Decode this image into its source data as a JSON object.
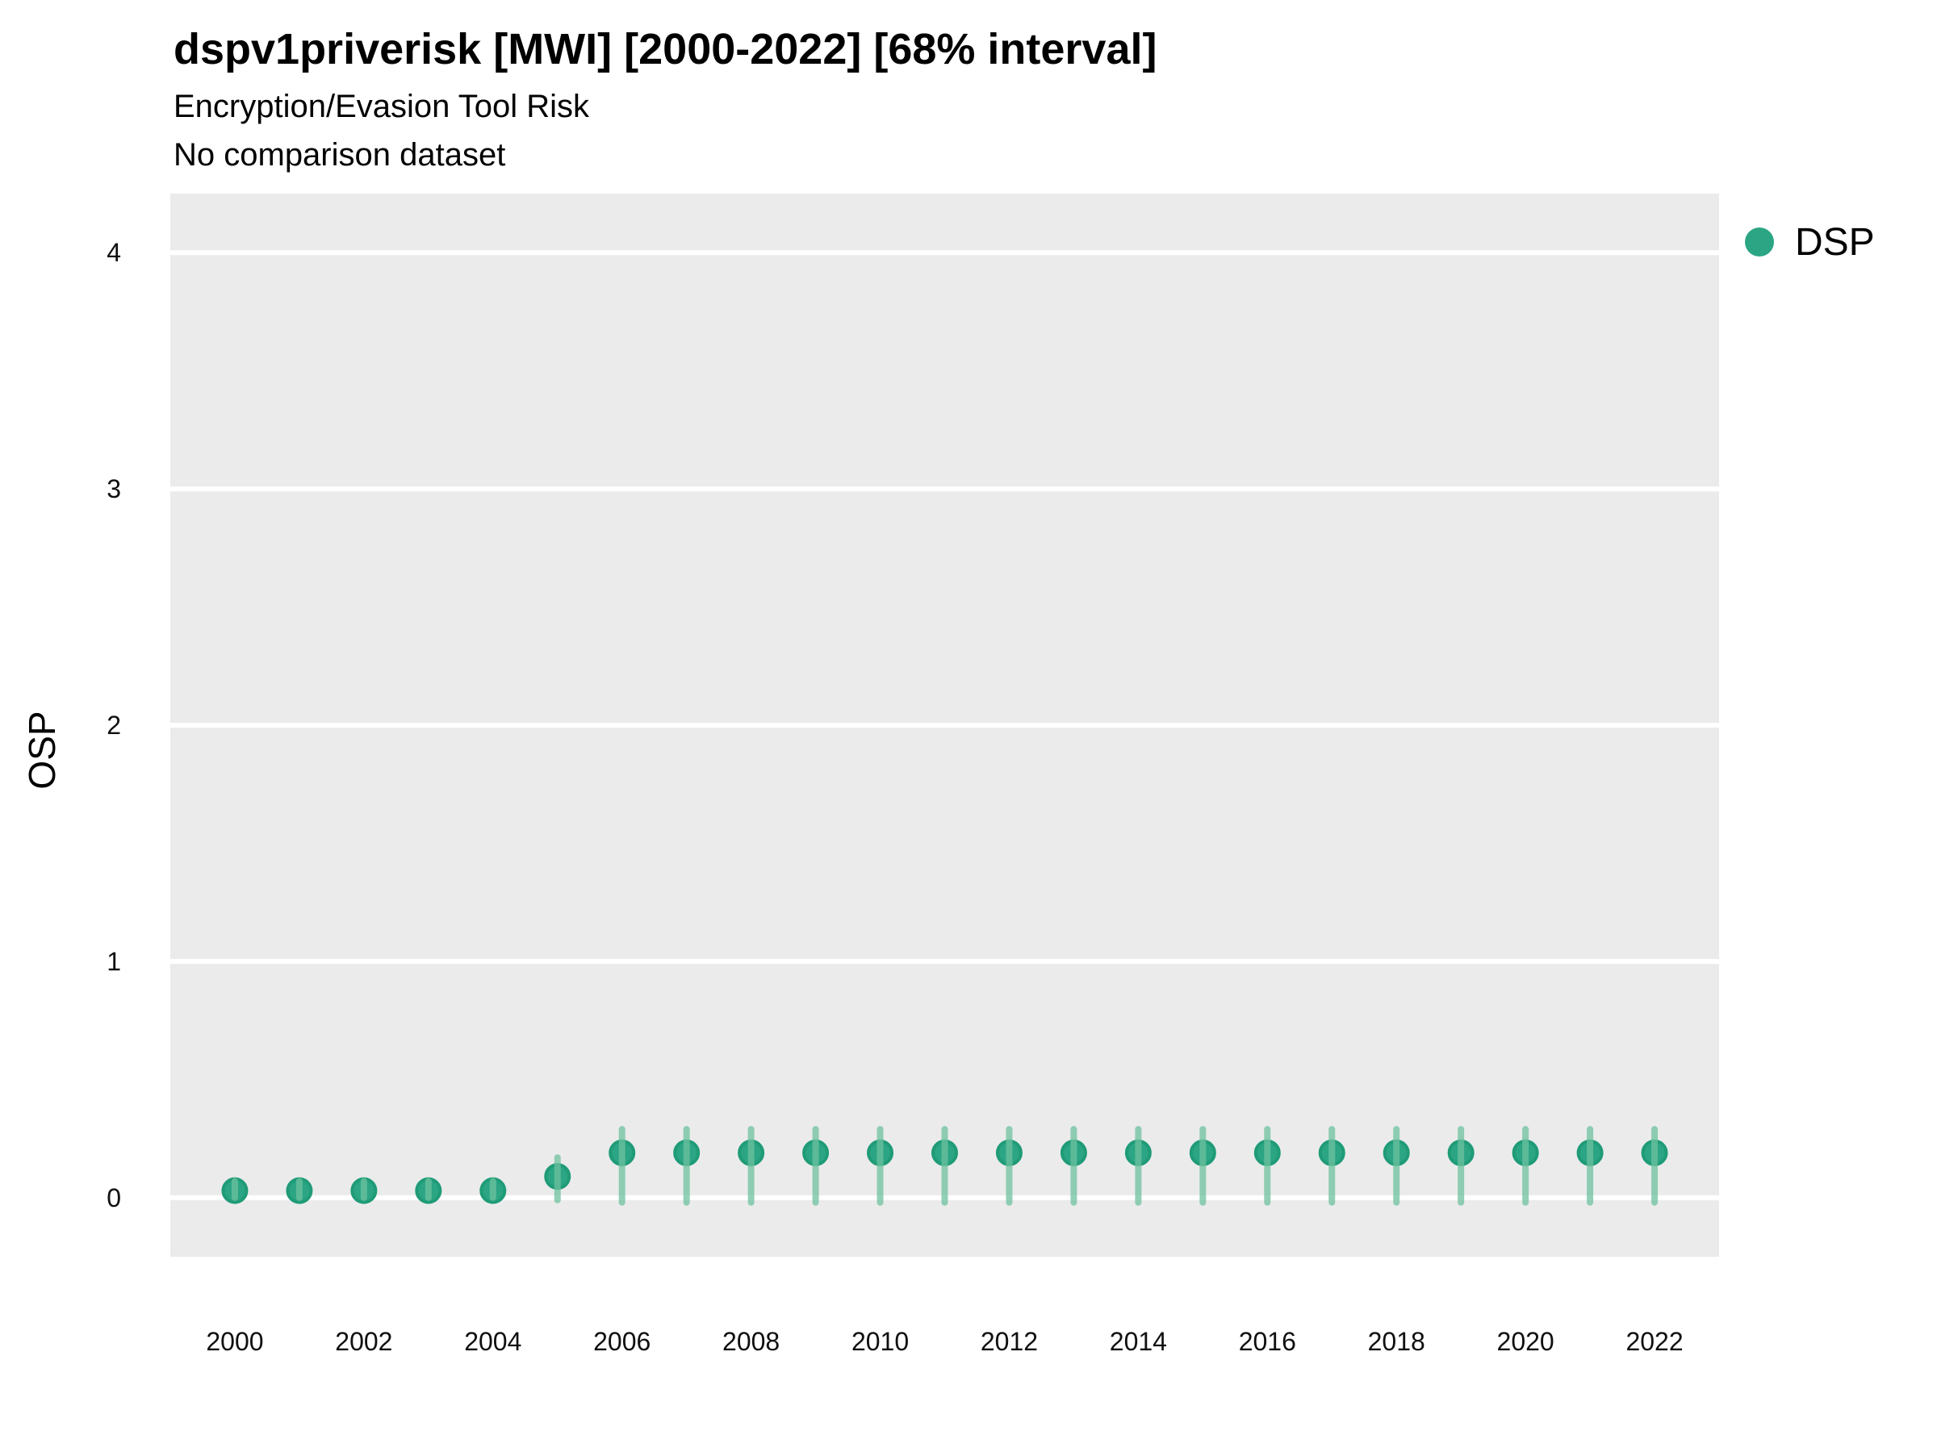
{
  "chart_data": {
    "type": "scatter",
    "title": "dspv1priverisk [MWI] [2000-2022] [68% interval]",
    "subtitle": "Encryption/Evasion Tool Risk",
    "note": "No comparison dataset",
    "xlabel": "",
    "ylabel": "OSP",
    "xlim": [
      1999,
      2023
    ],
    "ylim": [
      -0.25,
      4.25
    ],
    "xticks": [
      2000,
      2002,
      2004,
      2006,
      2008,
      2010,
      2012,
      2014,
      2016,
      2018,
      2020,
      2022
    ],
    "yticks": [
      0,
      1,
      2,
      3,
      4
    ],
    "grid": "horizontal-major-only",
    "legend_position": "right",
    "interval_level": "68%",
    "x": [
      2000,
      2001,
      2002,
      2003,
      2004,
      2005,
      2006,
      2007,
      2008,
      2009,
      2010,
      2011,
      2012,
      2013,
      2014,
      2015,
      2016,
      2017,
      2018,
      2019,
      2020,
      2021,
      2022
    ],
    "series": [
      {
        "name": "DSP",
        "values": [
          0.03,
          0.03,
          0.03,
          0.03,
          0.03,
          0.09,
          0.19,
          0.19,
          0.19,
          0.19,
          0.19,
          0.19,
          0.19,
          0.19,
          0.19,
          0.19,
          0.19,
          0.19,
          0.19,
          0.19,
          0.19,
          0.19,
          0.19
        ],
        "interval_low": [
          0.0,
          0.0,
          0.0,
          0.0,
          0.0,
          -0.01,
          -0.02,
          -0.02,
          -0.02,
          -0.02,
          -0.02,
          -0.02,
          -0.02,
          -0.02,
          -0.02,
          -0.02,
          -0.02,
          -0.02,
          -0.02,
          -0.02,
          -0.02,
          -0.02,
          -0.02
        ],
        "interval_high": [
          0.07,
          0.07,
          0.07,
          0.07,
          0.07,
          0.17,
          0.29,
          0.29,
          0.29,
          0.29,
          0.29,
          0.29,
          0.29,
          0.29,
          0.29,
          0.29,
          0.29,
          0.29,
          0.29,
          0.29,
          0.29,
          0.29,
          0.29
        ]
      }
    ]
  },
  "style": {
    "panel_bg": "#EBEBEB",
    "grid_color": "#FFFFFF",
    "marker_fill": "#2BA583",
    "marker_stroke": "#1F9B77",
    "errorbar_color": "#6EC19F",
    "errorbar_opacity": 0.75,
    "text_color": "#000000",
    "legend_dot_color": "#2BA583"
  }
}
